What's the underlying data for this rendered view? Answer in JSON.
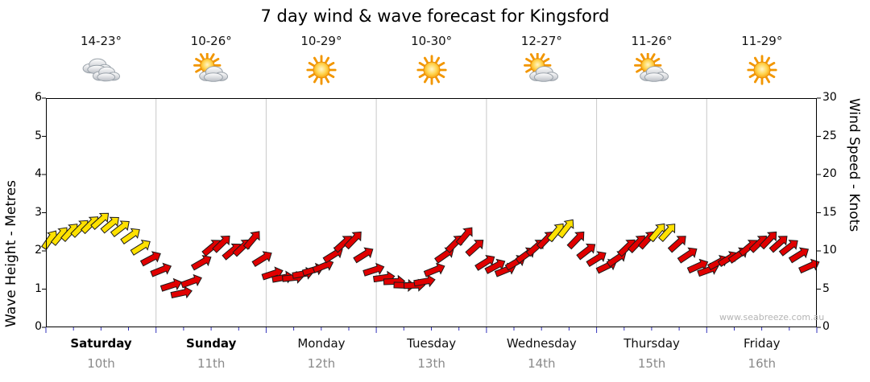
{
  "title": "7 day wind & wave forecast for Kingsford",
  "watermark": "www.seabreeze.com.au",
  "axes": {
    "left_title": "Wave Height - Metres",
    "right_title": "Wind Speed - Knots",
    "left_ticks": [
      "0",
      "1",
      "2",
      "3",
      "4",
      "5",
      "6"
    ],
    "right_ticks": [
      "0",
      "5",
      "10",
      "15",
      "20",
      "25",
      "30"
    ]
  },
  "days": [
    {
      "name": "Saturday",
      "date": "10th",
      "temp": "14-23°",
      "icon": "cloudy",
      "bold": true
    },
    {
      "name": "Sunday",
      "date": "11th",
      "temp": "10-26°",
      "icon": "partly",
      "bold": true
    },
    {
      "name": "Monday",
      "date": "12th",
      "temp": "10-29°",
      "icon": "sunny",
      "bold": false
    },
    {
      "name": "Tuesday",
      "date": "13th",
      "temp": "10-30°",
      "icon": "sunny",
      "bold": false
    },
    {
      "name": "Wednesday",
      "date": "14th",
      "temp": "12-27°",
      "icon": "partly",
      "bold": false
    },
    {
      "name": "Thursday",
      "date": "15th",
      "temp": "11-26°",
      "icon": "partly",
      "bold": false
    },
    {
      "name": "Friday",
      "date": "16th",
      "temp": "11-29°",
      "icon": "sunny",
      "bold": false
    }
  ],
  "chart_data": {
    "type": "wind-arrow-series",
    "title": "7 day wind & wave forecast for Kingsford",
    "x_categories": [
      "Saturday 10th",
      "Sunday 11th",
      "Monday 12th",
      "Tuesday 13th",
      "Wednesday 14th",
      "Thursday 15th",
      "Friday 16th"
    ],
    "ylabel_left": "Wave Height - Metres",
    "ylabel_right": "Wind Speed - Knots",
    "ylim_left": [
      0,
      6
    ],
    "ylim_right": [
      0,
      30
    ],
    "colors": {
      "yellow": "#ffe100",
      "red": "#e00000",
      "grid": "#c8c8c8",
      "bottom_ticks": "#3333bb"
    },
    "series": [
      {
        "name": "Wind speed (knots), colour-coded arrows with direction",
        "point_format": [
          "knots",
          "colour y=yellow r=red",
          "direction_deg_from_north"
        ],
        "points": [
          [
            11.5,
            "y",
            35
          ],
          [
            12,
            "y",
            40
          ],
          [
            12.5,
            "y",
            42
          ],
          [
            13,
            "y",
            45
          ],
          [
            13.5,
            "y",
            45
          ],
          [
            14,
            "y",
            48
          ],
          [
            13.5,
            "y",
            50
          ],
          [
            13,
            "y",
            52
          ],
          [
            12,
            "y",
            55
          ],
          [
            10.5,
            "y",
            58
          ],
          [
            9,
            "r",
            62
          ],
          [
            7.5,
            "r",
            68
          ],
          [
            5.5,
            "r",
            72
          ],
          [
            4.5,
            "r",
            78
          ],
          [
            6,
            "r",
            70
          ],
          [
            8.5,
            "r",
            60
          ],
          [
            10.5,
            "r",
            50
          ],
          [
            11,
            "r",
            46
          ],
          [
            10,
            "r",
            50
          ],
          [
            10.5,
            "r",
            46
          ],
          [
            11.5,
            "r",
            40
          ],
          [
            9,
            "r",
            58
          ],
          [
            7,
            "r",
            72
          ],
          [
            6.5,
            "r",
            80
          ],
          [
            6.5,
            "r",
            84
          ],
          [
            7,
            "r",
            80
          ],
          [
            7.5,
            "r",
            74
          ],
          [
            8,
            "r",
            68
          ],
          [
            9.5,
            "r",
            58
          ],
          [
            11,
            "r",
            48
          ],
          [
            11.5,
            "r",
            44
          ],
          [
            9.5,
            "r",
            58
          ],
          [
            7.5,
            "r",
            72
          ],
          [
            6.5,
            "r",
            82
          ],
          [
            6,
            "r",
            88
          ],
          [
            5.5,
            "r",
            92
          ],
          [
            5.5,
            "r",
            88
          ],
          [
            6,
            "r",
            80
          ],
          [
            7.5,
            "r",
            68
          ],
          [
            9.5,
            "r",
            55
          ],
          [
            11,
            "r",
            45
          ],
          [
            12,
            "r",
            40
          ],
          [
            10.5,
            "r",
            48
          ],
          [
            8.5,
            "r",
            58
          ],
          [
            8,
            "r",
            62
          ],
          [
            7.5,
            "r",
            68
          ],
          [
            8.5,
            "r",
            60
          ],
          [
            9.5,
            "r",
            54
          ],
          [
            10.5,
            "r",
            48
          ],
          [
            11.5,
            "r",
            44
          ],
          [
            12.5,
            "y",
            40
          ],
          [
            13,
            "y",
            38
          ],
          [
            11.5,
            "r",
            44
          ],
          [
            10,
            "r",
            52
          ],
          [
            9,
            "r",
            58
          ],
          [
            8,
            "r",
            64
          ],
          [
            9,
            "r",
            56
          ],
          [
            10.5,
            "r",
            46
          ],
          [
            11,
            "r",
            44
          ],
          [
            11.5,
            "r",
            42
          ],
          [
            12.5,
            "y",
            40
          ],
          [
            12.5,
            "y",
            42
          ],
          [
            11,
            "r",
            48
          ],
          [
            9.5,
            "r",
            56
          ],
          [
            8,
            "r",
            66
          ],
          [
            7.5,
            "r",
            70
          ],
          [
            8.5,
            "r",
            62
          ],
          [
            9,
            "r",
            58
          ],
          [
            9.5,
            "r",
            55
          ],
          [
            10.5,
            "r",
            50
          ],
          [
            11,
            "r",
            46
          ],
          [
            11.5,
            "r",
            44
          ],
          [
            11,
            "r",
            48
          ],
          [
            10.5,
            "r",
            52
          ],
          [
            9.5,
            "r",
            58
          ],
          [
            8,
            "r",
            66
          ]
        ]
      }
    ],
    "legend_position": "none",
    "grid": "vertical day boundaries only"
  }
}
